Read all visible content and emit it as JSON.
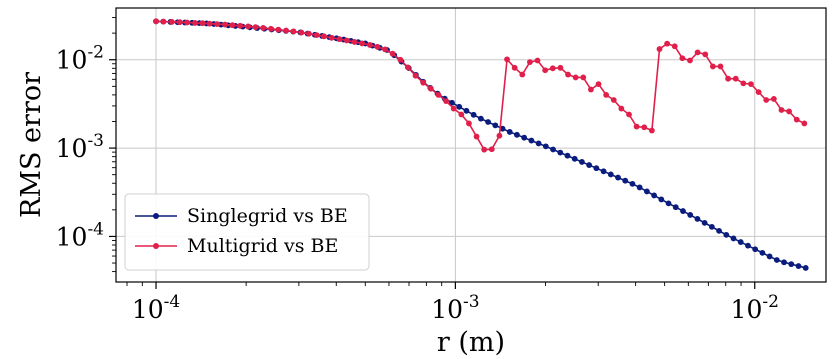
{
  "chart_data": {
    "type": "line",
    "xlabel": "r (m)",
    "ylabel": "RMS error",
    "xscale": "log",
    "yscale": "log",
    "xlim": [
      7.35e-05,
      0.0173
    ],
    "ylim": [
      3.05e-05,
      0.0385
    ],
    "grid": true,
    "legend_position": "lower-left",
    "x_ticks": [
      {
        "value": 0.0001,
        "base": "10",
        "exp": "-4"
      },
      {
        "value": 0.001,
        "base": "10",
        "exp": "-3"
      },
      {
        "value": 0.01,
        "base": "10",
        "exp": "-2"
      }
    ],
    "y_ticks": [
      {
        "value": 0.0001,
        "base": "10",
        "exp": "-4"
      },
      {
        "value": 0.001,
        "base": "10",
        "exp": "-3"
      },
      {
        "value": 0.01,
        "base": "10",
        "exp": "-2"
      }
    ],
    "series": [
      {
        "name": "Singlegrid vs BE",
        "color": "#0a1c7c",
        "x_range": [
          0.0001,
          0.0148
        ],
        "n_points": 91,
        "y_anchors": [
          [
            0.0001,
            0.0272
          ],
          [
            0.00015,
            0.0257
          ],
          [
            0.0002,
            0.0235
          ],
          [
            0.0003,
            0.0205
          ],
          [
            0.0004,
            0.0175
          ],
          [
            0.0005,
            0.0153
          ],
          [
            0.0006,
            0.0127
          ],
          [
            0.0007,
            0.008
          ],
          [
            0.0008,
            0.0052
          ],
          [
            0.0009,
            0.0038
          ],
          [
            0.001,
            0.0031
          ],
          [
            0.0012,
            0.0022
          ],
          [
            0.0015,
            0.00155
          ],
          [
            0.002,
            0.00105
          ],
          [
            0.003,
            0.00058
          ],
          [
            0.004,
            0.00038
          ],
          [
            0.005,
            0.00025
          ],
          [
            0.006,
            0.00018
          ],
          [
            0.007,
            0.000135
          ],
          [
            0.008,
            0.000105
          ],
          [
            0.01,
            7.2e-05
          ],
          [
            0.012,
            5.3e-05
          ],
          [
            0.0148,
            4.4e-05
          ]
        ]
      },
      {
        "name": "Multigrid vs BE",
        "color": "#e0204a",
        "points": [
          [
            0.0001,
            0.0272
          ],
          [
            0.000106,
            0.027
          ],
          [
            0.000113,
            0.0268
          ],
          [
            0.00012,
            0.0266
          ],
          [
            0.000127,
            0.0264
          ],
          [
            0.000135,
            0.0261
          ],
          [
            0.000143,
            0.0259
          ],
          [
            0.000151,
            0.0256
          ],
          [
            0.00016,
            0.0253
          ],
          [
            0.00017,
            0.025
          ],
          [
            0.00018,
            0.0246
          ],
          [
            0.000191,
            0.0242
          ],
          [
            0.000203,
            0.0238
          ],
          [
            0.000215,
            0.0234
          ],
          [
            0.000228,
            0.0229
          ],
          [
            0.000242,
            0.0224
          ],
          [
            0.000256,
            0.0219
          ],
          [
            0.000272,
            0.0214
          ],
          [
            0.000288,
            0.0209
          ],
          [
            0.000306,
            0.0203
          ],
          [
            0.000324,
            0.0197
          ],
          [
            0.000344,
            0.019
          ],
          [
            0.000364,
            0.0184
          ],
          [
            0.000386,
            0.0177
          ],
          [
            0.00041,
            0.0171
          ],
          [
            0.000434,
            0.0165
          ],
          [
            0.00046,
            0.0159
          ],
          [
            0.000488,
            0.0153
          ],
          [
            0.000518,
            0.0147
          ],
          [
            0.000549,
            0.014
          ],
          [
            0.000582,
            0.0131
          ],
          [
            0.000617,
            0.0117
          ],
          [
            0.000655,
            0.01
          ],
          [
            0.000694,
            0.0082
          ],
          [
            0.000736,
            0.0066
          ],
          [
            0.000781,
            0.0055
          ],
          [
            0.000828,
            0.0047
          ],
          [
            0.000878,
            0.004
          ],
          [
            0.000931,
            0.0034
          ],
          [
            0.000987,
            0.0028
          ],
          [
            0.001047,
            0.0024
          ],
          [
            0.00111,
            0.0019
          ],
          [
            0.001177,
            0.00135
          ],
          [
            0.001248,
            0.00096
          ],
          [
            0.001323,
            0.00097
          ],
          [
            0.001403,
            0.00138
          ],
          [
            0.001488,
            0.0101
          ],
          [
            0.001578,
            0.0081
          ],
          [
            0.001673,
            0.0068
          ],
          [
            0.001774,
            0.0094
          ],
          [
            0.001881,
            0.0098
          ],
          [
            0.001995,
            0.0076
          ],
          [
            0.002115,
            0.008
          ],
          [
            0.002243,
            0.0081
          ],
          [
            0.002378,
            0.0068
          ],
          [
            0.002522,
            0.0063
          ],
          [
            0.002674,
            0.0063
          ],
          [
            0.002836,
            0.0046
          ],
          [
            0.003007,
            0.0053
          ],
          [
            0.003189,
            0.004
          ],
          [
            0.003381,
            0.0035
          ],
          [
            0.003585,
            0.0028
          ],
          [
            0.003802,
            0.0024
          ],
          [
            0.004031,
            0.00175
          ],
          [
            0.004275,
            0.00172
          ],
          [
            0.004533,
            0.00158
          ],
          [
            0.004807,
            0.0132
          ],
          [
            0.005097,
            0.0152
          ],
          [
            0.005405,
            0.0142
          ],
          [
            0.005731,
            0.0104
          ],
          [
            0.006077,
            0.0098
          ],
          [
            0.006444,
            0.0121
          ],
          [
            0.006834,
            0.0115
          ],
          [
            0.007246,
            0.0084
          ],
          [
            0.007684,
            0.0084
          ],
          [
            0.008148,
            0.0061
          ],
          [
            0.00864,
            0.0061
          ],
          [
            0.009162,
            0.0054
          ],
          [
            0.009715,
            0.0053
          ],
          [
            0.010302,
            0.0043
          ],
          [
            0.010924,
            0.0035
          ],
          [
            0.011584,
            0.0036
          ],
          [
            0.012283,
            0.0027
          ],
          [
            0.013025,
            0.0026
          ],
          [
            0.013812,
            0.0021
          ],
          [
            0.014646,
            0.0019
          ]
        ]
      }
    ]
  }
}
